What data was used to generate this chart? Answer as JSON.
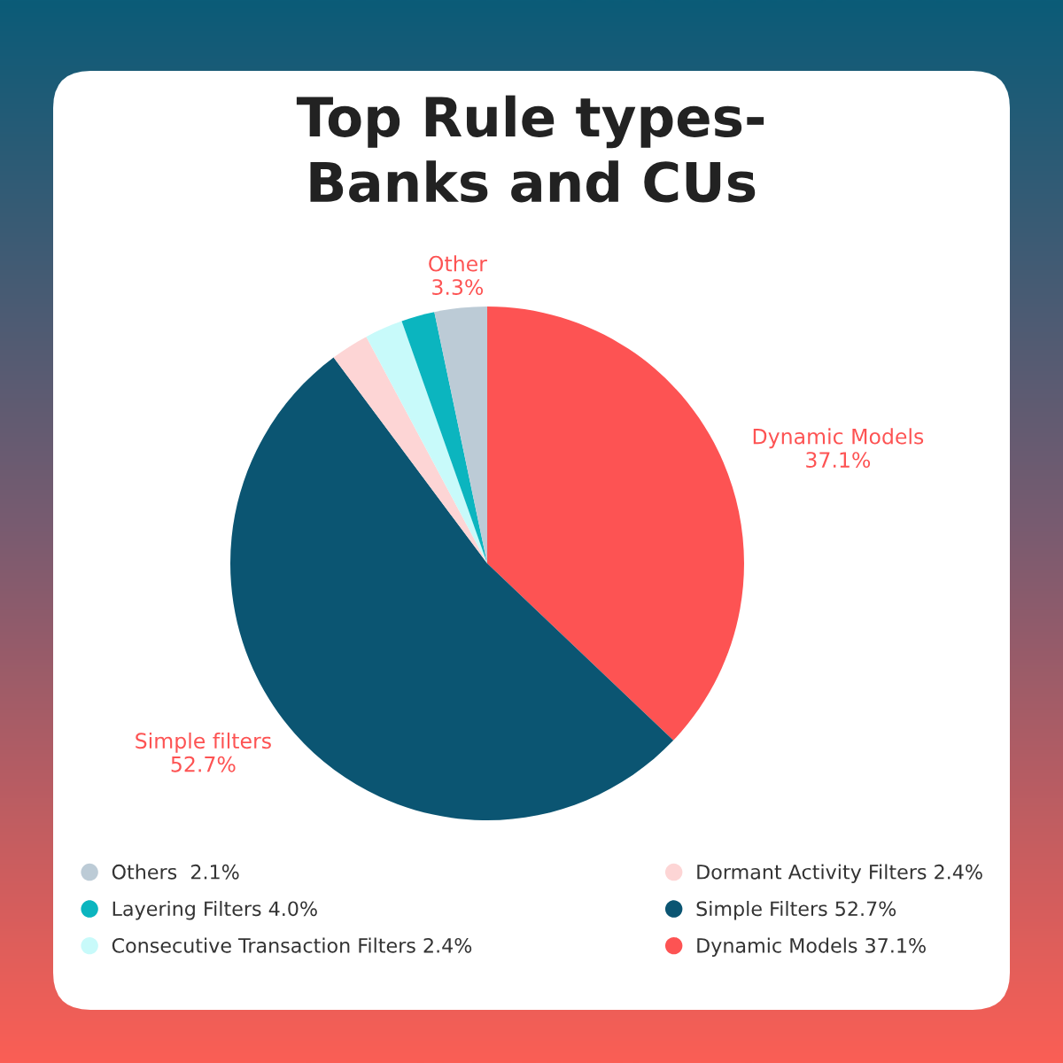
{
  "chart_data": {
    "type": "pie",
    "title": "Top Rule types-\nBanks and CUs",
    "categories": [
      "Dynamic Models 37.1%",
      "Simple Filters 52.7%",
      "Dormant Activity Filters 2.4%",
      "Consecutive Transaction Filters 2.4%",
      "Layering Filters 4.0%",
      "Others  2.1%"
    ],
    "values": [
      37.1,
      52.7,
      2.4,
      2.4,
      2.1,
      3.3
    ],
    "colors": [
      "#fd5353",
      "#0b5572",
      "#fdd5d5",
      "#c8fafa",
      "#0bb5bf",
      "#bccbd6"
    ],
    "legend": "bottom",
    "annotations": [
      "Dynamic Models\n37.1%",
      "Simple filters\n52.7%",
      "Other\n3.3%"
    ]
  }
}
